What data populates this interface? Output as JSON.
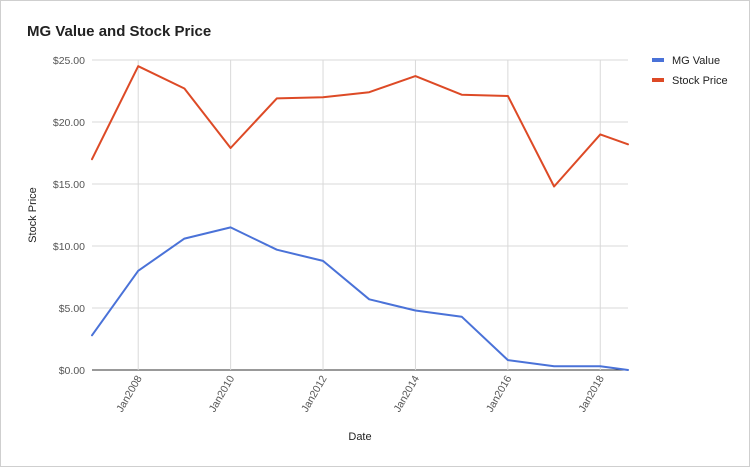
{
  "chart_data": {
    "type": "line",
    "title": "MG Value and Stock Price",
    "xlabel": "Date",
    "ylabel": "Stock Price",
    "x": [
      2007,
      2008,
      2009,
      2010,
      2011,
      2012,
      2013,
      2014,
      2015,
      2016,
      2017,
      2018,
      2018.6
    ],
    "xlim": [
      2007,
      2018.6
    ],
    "x_ticks": [
      2008,
      2010,
      2012,
      2014,
      2016,
      2018
    ],
    "x_tick_labels": [
      "Jan2008",
      "Jan2010",
      "Jan2012",
      "Jan2014",
      "Jan2016",
      "Jan2018"
    ],
    "ylim": [
      0,
      25
    ],
    "y_ticks": [
      0,
      5,
      10,
      15,
      20,
      25
    ],
    "y_tick_labels": [
      "$0.00",
      "$5.00",
      "$10.00",
      "$15.00",
      "$20.00",
      "$25.00"
    ],
    "grid": true,
    "legend_position": "right",
    "series": [
      {
        "name": "MG Value",
        "color": "#4a72d8",
        "values": [
          2.8,
          8.0,
          10.6,
          11.5,
          9.7,
          8.8,
          5.7,
          4.8,
          4.3,
          0.8,
          0.3,
          0.3,
          0.0
        ]
      },
      {
        "name": "Stock Price",
        "color": "#dd4a26",
        "values": [
          17.0,
          24.5,
          22.7,
          17.9,
          21.9,
          22.0,
          22.4,
          23.7,
          22.2,
          22.1,
          14.8,
          19.0,
          18.2
        ]
      }
    ]
  }
}
